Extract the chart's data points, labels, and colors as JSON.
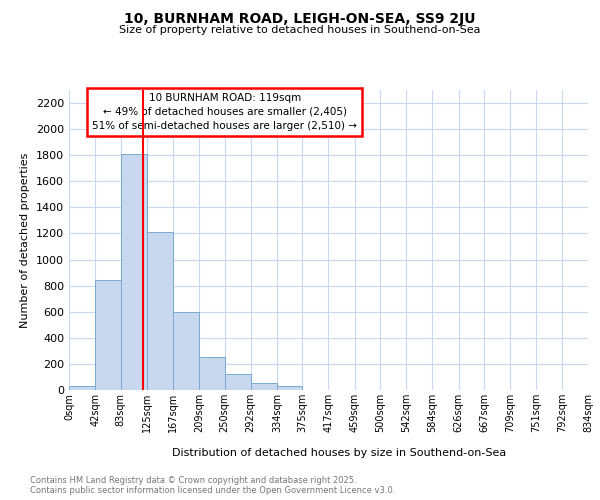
{
  "title1": "10, BURNHAM ROAD, LEIGH-ON-SEA, SS9 2JU",
  "title2": "Size of property relative to detached houses in Southend-on-Sea",
  "xlabel": "Distribution of detached houses by size in Southend-on-Sea",
  "ylabel": "Number of detached properties",
  "bar_color": "#c8d8ee",
  "bar_edge_color": "#7aaad0",
  "vline_x": 119,
  "vline_color": "red",
  "annotation_title": "10 BURNHAM ROAD: 119sqm",
  "annotation_line1": "← 49% of detached houses are smaller (2,405)",
  "annotation_line2": "51% of semi-detached houses are larger (2,510) →",
  "bins": [
    0,
    42,
    83,
    125,
    167,
    209,
    250,
    292,
    334,
    375,
    417,
    459,
    500,
    542,
    584,
    626,
    667,
    709,
    751,
    792,
    834
  ],
  "values": [
    30,
    840,
    1810,
    1210,
    600,
    255,
    125,
    50,
    30,
    0,
    0,
    0,
    0,
    0,
    0,
    0,
    0,
    0,
    0,
    0
  ],
  "ylim": [
    0,
    2300
  ],
  "yticks": [
    0,
    200,
    400,
    600,
    800,
    1000,
    1200,
    1400,
    1600,
    1800,
    2000,
    2200
  ],
  "footer_line1": "Contains HM Land Registry data © Crown copyright and database right 2025.",
  "footer_line2": "Contains public sector information licensed under the Open Government Licence v3.0.",
  "bg_color": "#f8f8f8",
  "grid_color": "#c8d8f0"
}
